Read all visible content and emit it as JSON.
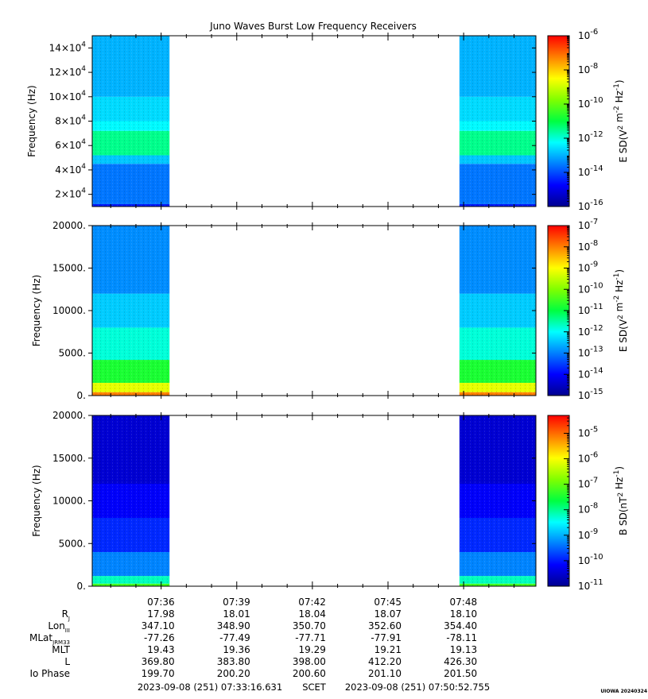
{
  "title": "Juno Waves Burst Low Frequency Receivers",
  "chart_data": [
    {
      "type": "heatmap",
      "panel": "top",
      "ylabel": "Frequency (Hz)",
      "ylim": [
        10000,
        150000
      ],
      "yticks": [
        {
          "value": 20000,
          "base": "2×10",
          "exp": "4"
        },
        {
          "value": 40000,
          "base": "4×10",
          "exp": "4"
        },
        {
          "value": 60000,
          "base": "6×10",
          "exp": "4"
        },
        {
          "value": 80000,
          "base": "8×10",
          "exp": "4"
        },
        {
          "value": 100000,
          "base": "10×10",
          "exp": "4"
        },
        {
          "value": 120000,
          "base": "12×10",
          "exp": "4"
        },
        {
          "value": 140000,
          "base": "14×10",
          "exp": "4"
        }
      ],
      "colorbar": {
        "label": "E SD(V2 m-2 Hz-1)",
        "scale": "log",
        "range": [
          -16,
          -6
        ],
        "ticks": [
          {
            "exp": "-6",
            "value": -6
          },
          {
            "exp": "-8",
            "value": -8
          },
          {
            "exp": "-10",
            "value": -10
          },
          {
            "exp": "-12",
            "value": -12
          },
          {
            "exp": "-14",
            "value": -14
          },
          {
            "exp": "-16",
            "value": -16
          }
        ]
      },
      "data_intervals": [
        [
          "07:33:16",
          "07:36:20"
        ],
        [
          "07:47:50",
          "07:50:52"
        ]
      ],
      "bands": [
        {
          "from": 10000,
          "to": 12000,
          "level": -14.5
        },
        {
          "from": 12000,
          "to": 45000,
          "level": -13.6
        },
        {
          "from": 45000,
          "to": 52000,
          "level": -12.8
        },
        {
          "from": 52000,
          "to": 72000,
          "level": -11.5
        },
        {
          "from": 72000,
          "to": 80000,
          "level": -12.3
        },
        {
          "from": 80000,
          "to": 100000,
          "level": -12.6
        },
        {
          "from": 100000,
          "to": 150000,
          "level": -13.0
        }
      ]
    },
    {
      "type": "heatmap",
      "panel": "middle",
      "ylabel": "Frequency (Hz)",
      "ylim": [
        0,
        20000
      ],
      "yticks": [
        {
          "value": 0,
          "label": "0."
        },
        {
          "value": 5000,
          "label": "5000."
        },
        {
          "value": 10000,
          "label": "10000."
        },
        {
          "value": 15000,
          "label": "15000."
        },
        {
          "value": 20000,
          "label": "20000."
        }
      ],
      "colorbar": {
        "label": "E SD(V2 m-2 Hz-1)",
        "scale": "log",
        "range": [
          -15,
          -7
        ],
        "ticks": [
          {
            "exp": "-7",
            "value": -7
          },
          {
            "exp": "-8",
            "value": -8
          },
          {
            "exp": "-9",
            "value": -9
          },
          {
            "exp": "-10",
            "value": -10
          },
          {
            "exp": "-11",
            "value": -11
          },
          {
            "exp": "-12",
            "value": -12
          },
          {
            "exp": "-13",
            "value": -13
          },
          {
            "exp": "-14",
            "value": -14
          },
          {
            "exp": "-15",
            "value": -15
          }
        ]
      },
      "data_intervals": [
        [
          "07:33:16",
          "07:36:20"
        ],
        [
          "07:47:50",
          "07:50:52"
        ]
      ],
      "bands": [
        {
          "from": 0,
          "to": 400,
          "level": -8.0
        },
        {
          "from": 400,
          "to": 1500,
          "level": -9.2
        },
        {
          "from": 1500,
          "to": 4200,
          "level": -10.8
        },
        {
          "from": 4200,
          "to": 8000,
          "level": -11.8
        },
        {
          "from": 8000,
          "to": 12000,
          "level": -12.4
        },
        {
          "from": 12000,
          "to": 20000,
          "level": -12.9
        }
      ]
    },
    {
      "type": "heatmap",
      "panel": "bottom",
      "ylabel": "Frequency (Hz)",
      "ylim": [
        0,
        20000
      ],
      "yticks": [
        {
          "value": 0,
          "label": "0."
        },
        {
          "value": 5000,
          "label": "5000."
        },
        {
          "value": 10000,
          "label": "10000."
        },
        {
          "value": 15000,
          "label": "15000."
        },
        {
          "value": 20000,
          "label": "20000."
        }
      ],
      "colorbar": {
        "label": "B SD(nT2 Hz-1)",
        "scale": "log",
        "range": [
          -11,
          -4.3
        ],
        "ticks": [
          {
            "exp": "-5",
            "value": -5
          },
          {
            "exp": "-6",
            "value": -6
          },
          {
            "exp": "-7",
            "value": -7
          },
          {
            "exp": "-8",
            "value": -8
          },
          {
            "exp": "-9",
            "value": -9
          },
          {
            "exp": "-10",
            "value": -10
          },
          {
            "exp": "-11",
            "value": -11
          }
        ]
      },
      "data_intervals": [
        [
          "07:33:16",
          "07:36:20"
        ],
        [
          "07:47:50",
          "07:50:52"
        ]
      ],
      "bands": [
        {
          "from": 0,
          "to": 300,
          "level": -7.2
        },
        {
          "from": 300,
          "to": 1200,
          "level": -8.2
        },
        {
          "from": 1200,
          "to": 4000,
          "level": -9.3
        },
        {
          "from": 4000,
          "to": 8000,
          "level": -9.9
        },
        {
          "from": 8000,
          "to": 12000,
          "level": -10.2
        },
        {
          "from": 12000,
          "to": 20000,
          "level": -10.5
        }
      ]
    }
  ],
  "time_axis": {
    "start": "07:33:16",
    "end": "07:50:52",
    "tick_labels": [
      "07:36",
      "07:39",
      "07:42",
      "07:45",
      "07:48"
    ]
  },
  "ephemeris": {
    "rows": [
      {
        "label": "R",
        "sub": "J",
        "values": [
          "17.98",
          "18.01",
          "18.04",
          "18.07",
          "18.10"
        ]
      },
      {
        "label": "Lon",
        "sub": "III",
        "values": [
          "347.10",
          "348.90",
          "350.70",
          "352.60",
          "354.40"
        ]
      },
      {
        "label": "MLat",
        "sub": "JRM33",
        "values": [
          "-77.26",
          "-77.49",
          "-77.71",
          "-77.91",
          "-78.11"
        ]
      },
      {
        "label": "MLT",
        "sub": "",
        "values": [
          "19.43",
          "19.36",
          "19.29",
          "19.21",
          "19.13"
        ]
      },
      {
        "label": "L",
        "sub": "",
        "values": [
          "369.80",
          "383.80",
          "398.00",
          "412.20",
          "426.30"
        ]
      },
      {
        "label": "Io Phase",
        "sub": "",
        "values": [
          "199.70",
          "200.20",
          "200.60",
          "201.10",
          "201.50"
        ]
      }
    ]
  },
  "footer": {
    "start": "2023-09-08 (251) 07:33:16.631",
    "frame": "SCET",
    "end": "2023-09-08 (251) 07:50:52.755",
    "stamp": "UIOWA 20240324"
  }
}
